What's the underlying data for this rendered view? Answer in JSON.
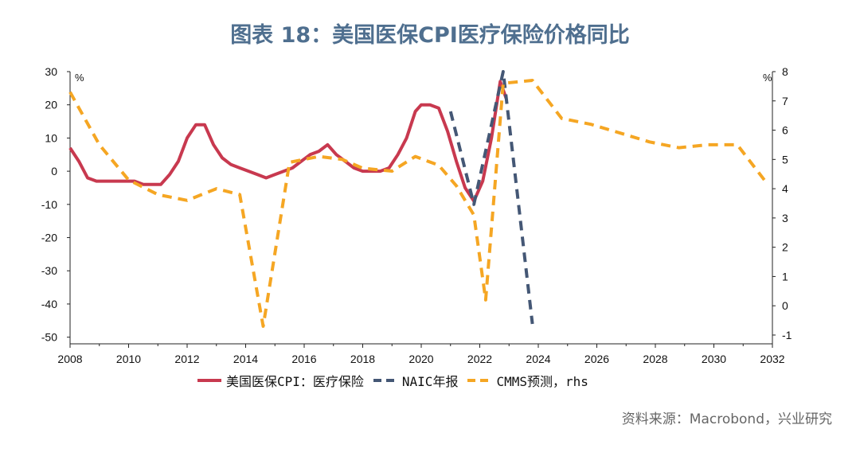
{
  "title": "图表 18：美国医保CPI医疗保险价格同比",
  "source": "资料来源：Macrobond，兴业研究",
  "colors": {
    "cpi": "#c8394f",
    "naic": "#445775",
    "cmms": "#f5a623",
    "title": "#4f6f8f"
  },
  "chart_data": {
    "type": "line",
    "left_unit": "%",
    "right_unit": "%",
    "x_ticks": [
      "2008",
      "2010",
      "2012",
      "2014",
      "2016",
      "2018",
      "2020",
      "2022",
      "2024",
      "2026",
      "2028",
      "2030",
      "2032"
    ],
    "x_range": [
      2008,
      2032
    ],
    "y_left_ticks": [
      "30",
      "20",
      "10",
      "0",
      "-10",
      "-20",
      "-30",
      "-40",
      "-50"
    ],
    "y_left_range": [
      -52,
      30
    ],
    "y_right_ticks": [
      "8",
      "7",
      "6",
      "5",
      "4",
      "3",
      "2",
      "1",
      "0",
      "-1"
    ],
    "y_right_range": [
      -1.3,
      8
    ],
    "series": [
      {
        "name": "美国医保CPI：医疗保险",
        "axis": "left",
        "style": "solid",
        "x": [
          2008.0,
          2008.3,
          2008.6,
          2008.9,
          2009.2,
          2009.5,
          2009.8,
          2010.2,
          2010.5,
          2010.8,
          2011.1,
          2011.4,
          2011.7,
          2012.0,
          2012.3,
          2012.6,
          2012.9,
          2013.2,
          2013.5,
          2013.8,
          2014.1,
          2014.4,
          2014.7,
          2015.0,
          2015.3,
          2015.6,
          2015.9,
          2016.2,
          2016.5,
          2016.8,
          2017.1,
          2017.4,
          2017.7,
          2018.0,
          2018.3,
          2018.6,
          2018.9,
          2019.2,
          2019.5,
          2019.8,
          2020.0,
          2020.3,
          2020.6,
          2020.9,
          2021.2,
          2021.5,
          2021.8,
          2022.1,
          2022.4,
          2022.7,
          2022.9
        ],
        "y": [
          7,
          3,
          -2,
          -3,
          -3,
          -3,
          -3,
          -3,
          -4,
          -4,
          -4,
          -1,
          3,
          10,
          14,
          14,
          8,
          4,
          2,
          1,
          0,
          -1,
          -2,
          -1,
          0,
          1,
          3,
          5,
          6,
          8,
          5,
          3,
          1,
          0,
          0,
          0,
          1,
          5,
          10,
          18,
          20,
          20,
          19,
          12,
          3,
          -5,
          -9,
          -3,
          10,
          27,
          22
        ]
      },
      {
        "name": "NAIC年报",
        "axis": "left",
        "style": "dashed",
        "x": [
          2021.0,
          2021.8,
          2022.8,
          2023.8
        ],
        "y": [
          18,
          -10,
          30,
          -46
        ]
      },
      {
        "name": "CMMS预测，rhs",
        "axis": "right",
        "style": "dashed",
        "x": [
          2008.0,
          2009.0,
          2010.0,
          2011.0,
          2012.0,
          2013.0,
          2013.8,
          2014.6,
          2015.5,
          2016.5,
          2017.3,
          2018.0,
          2019.0,
          2019.8,
          2020.6,
          2021.2,
          2021.8,
          2022.2,
          2022.8,
          2023.8,
          2024.8,
          2025.8,
          2026.8,
          2027.8,
          2028.8,
          2029.8,
          2030.8,
          2031.8
        ],
        "y": [
          7.3,
          5.5,
          4.3,
          3.8,
          3.6,
          4.0,
          3.8,
          -0.7,
          4.9,
          5.1,
          5.0,
          4.7,
          4.6,
          5.1,
          4.8,
          4.1,
          3.1,
          0.2,
          7.6,
          7.7,
          6.4,
          6.2,
          5.9,
          5.6,
          5.4,
          5.5,
          5.5,
          4.2
        ]
      }
    ],
    "legend": [
      "美国医保CPI：医疗保险",
      "NAIC年报",
      "CMMS预测，rhs"
    ]
  }
}
